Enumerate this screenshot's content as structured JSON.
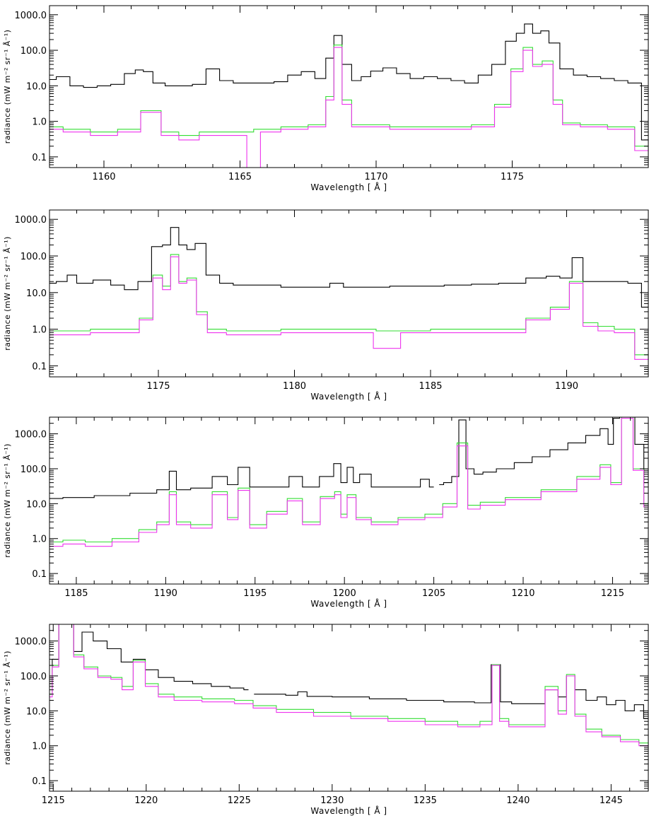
{
  "chart_data": [
    {
      "type": "line",
      "ylabel": "radiance (mW m⁻² sr⁻¹ Å⁻¹)",
      "xlabel": "Wavelength [ Å ]",
      "xlim": [
        1158,
        1180
      ],
      "ylim": [
        0.05,
        1800
      ],
      "yscale": "log",
      "xticks": [
        1160,
        1165,
        1170,
        1175
      ],
      "yticks": [
        0.1,
        1.0,
        10.0,
        100.0,
        1000.0
      ],
      "ytick_labels": [
        "0.1",
        "1.0",
        "10.0",
        "100.0",
        "1000.0"
      ],
      "series": [
        {
          "color": "#000000",
          "x": [
            1158,
            1158.5,
            1159,
            1159.5,
            1160,
            1160.5,
            1161,
            1161.3,
            1161.6,
            1162,
            1162.5,
            1163,
            1163.5,
            1164,
            1164.5,
            1165,
            1165.5,
            1166,
            1166.5,
            1167,
            1167.5,
            1168,
            1168.3,
            1168.6,
            1168.9,
            1169.3,
            1169.6,
            1170,
            1170.5,
            1171,
            1171.5,
            1172,
            1172.5,
            1173,
            1173.5,
            1174,
            1174.5,
            1175,
            1175.3,
            1175.6,
            1175.9,
            1176.2,
            1176.5,
            1177,
            1177.5,
            1178,
            1178.5,
            1179,
            1179.5,
            1180
          ],
          "y": [
            15,
            18,
            10,
            9,
            10,
            11,
            22,
            28,
            25,
            12,
            10,
            10,
            11,
            30,
            14,
            12,
            12,
            12,
            13,
            20,
            25,
            16,
            60,
            260,
            40,
            14,
            18,
            26,
            32,
            22,
            16,
            18,
            16,
            14,
            12,
            20,
            40,
            180,
            300,
            550,
            300,
            350,
            160,
            30,
            20,
            18,
            16,
            14,
            12,
            0.3
          ]
        },
        {
          "color": "#33dd33",
          "x": [
            1158,
            1159,
            1160,
            1161,
            1161.7,
            1162.5,
            1163,
            1164,
            1165,
            1166,
            1167,
            1168,
            1168.3,
            1168.6,
            1168.9,
            1169.3,
            1170,
            1171,
            1172,
            1173,
            1174,
            1174.7,
            1175.2,
            1175.6,
            1175.9,
            1176.3,
            1176.7,
            1177,
            1178,
            1179,
            1180
          ],
          "y": [
            0.7,
            0.6,
            0.5,
            0.6,
            2.0,
            0.5,
            0.4,
            0.5,
            0.5,
            0.6,
            0.7,
            0.8,
            5,
            140,
            4,
            0.8,
            0.8,
            0.7,
            0.7,
            0.7,
            0.8,
            3,
            30,
            120,
            40,
            50,
            4,
            0.9,
            0.8,
            0.7,
            0.2
          ]
        },
        {
          "color": "#ee33ee",
          "x": [
            1158,
            1159,
            1160,
            1161,
            1161.7,
            1162.5,
            1163,
            1164,
            1165,
            1165.5,
            1166,
            1167,
            1168,
            1168.3,
            1168.6,
            1168.9,
            1169.3,
            1170,
            1171,
            1172,
            1173,
            1174,
            1174.7,
            1175.2,
            1175.6,
            1175.9,
            1176.3,
            1176.7,
            1177,
            1178,
            1179,
            1180
          ],
          "y": [
            0.6,
            0.5,
            0.4,
            0.5,
            1.8,
            0.4,
            0.3,
            0.4,
            0.4,
            0.05,
            0.5,
            0.6,
            0.7,
            4,
            120,
            3,
            0.7,
            0.7,
            0.6,
            0.6,
            0.6,
            0.7,
            2.5,
            25,
            100,
            35,
            40,
            3,
            0.8,
            0.7,
            0.6,
            0.15
          ]
        }
      ]
    },
    {
      "type": "line",
      "ylabel": "radiance (mW m⁻² sr⁻¹ Å⁻¹)",
      "xlabel": "Wavelength [ Å ]",
      "xlim": [
        1171,
        1193
      ],
      "ylim": [
        0.05,
        1800
      ],
      "yscale": "log",
      "xticks": [
        1175,
        1180,
        1185,
        1190
      ],
      "yticks": [
        0.1,
        1.0,
        10.0,
        100.0,
        1000.0
      ],
      "ytick_labels": [
        "0.1",
        "1.0",
        "10.0",
        "100.0",
        "1000.0"
      ],
      "series": [
        {
          "color": "#000000",
          "x": [
            1171,
            1171.5,
            1171.8,
            1172.2,
            1173,
            1173.5,
            1174,
            1174.5,
            1175,
            1175.3,
            1175.6,
            1175.9,
            1176.2,
            1176.5,
            1177,
            1177.5,
            1178,
            1179,
            1180,
            1181,
            1181.6,
            1182,
            1183,
            1184,
            1185,
            1186,
            1187,
            1188,
            1189,
            1189.5,
            1190,
            1190.4,
            1190.8,
            1191.5,
            1192,
            1192.5,
            1193
          ],
          "y": [
            18,
            20,
            30,
            18,
            22,
            16,
            12,
            20,
            180,
            200,
            600,
            200,
            150,
            220,
            30,
            18,
            16,
            16,
            14,
            14,
            18,
            14,
            14,
            15,
            15,
            16,
            17,
            18,
            25,
            28,
            25,
            90,
            20,
            20,
            20,
            18,
            4
          ]
        },
        {
          "color": "#33dd33",
          "x": [
            1171,
            1172,
            1173,
            1174,
            1174.6,
            1175,
            1175.3,
            1175.6,
            1175.9,
            1176.2,
            1176.6,
            1177,
            1178,
            1179,
            1180,
            1182,
            1184,
            1186,
            1188,
            1189,
            1189.8,
            1190.4,
            1190.8,
            1191.5,
            1192,
            1193
          ],
          "y": [
            0.9,
            0.9,
            1.0,
            1.0,
            2,
            30,
            15,
            110,
            20,
            25,
            3,
            1.0,
            0.9,
            0.9,
            1.0,
            1.0,
            0.9,
            1.0,
            1.0,
            2,
            4,
            20,
            1.5,
            1.2,
            1.0,
            0.2
          ]
        },
        {
          "color": "#ee33ee",
          "x": [
            1171,
            1172,
            1173,
            1174,
            1174.6,
            1175,
            1175.3,
            1175.6,
            1175.9,
            1176.2,
            1176.6,
            1177,
            1178,
            1179,
            1180,
            1182,
            1183.8,
            1184,
            1186,
            1188,
            1189,
            1189.8,
            1190.4,
            1190.8,
            1191.5,
            1192,
            1193
          ],
          "y": [
            0.7,
            0.7,
            0.8,
            0.8,
            1.8,
            25,
            12,
            95,
            18,
            22,
            2.5,
            0.8,
            0.7,
            0.7,
            0.8,
            0.8,
            0.3,
            0.8,
            0.8,
            0.8,
            1.8,
            3.5,
            18,
            1.2,
            0.9,
            0.8,
            0.15
          ]
        }
      ]
    },
    {
      "type": "line",
      "ylabel": "radiance (mW m⁻² sr⁻¹ Å⁻¹)",
      "xlabel": "Wavelength [ Å ]",
      "xlim": [
        1183.5,
        1217
      ],
      "ylim": [
        0.05,
        3000
      ],
      "yscale": "log",
      "xticks": [
        1185,
        1190,
        1195,
        1200,
        1205,
        1210,
        1215
      ],
      "yticks": [
        0.1,
        1.0,
        10.0,
        100.0,
        1000.0
      ],
      "ytick_labels": [
        "0.1",
        "1.0",
        "10.0",
        "100.0",
        "1000.0"
      ],
      "series": [
        {
          "color": "#000000",
          "x": [
            1183.5,
            1185,
            1187,
            1189,
            1190,
            1190.4,
            1190.8,
            1192,
            1193.2,
            1193.7,
            1194.4,
            1195,
            1196.5,
            1197.3,
            1198,
            1199.2,
            1199.6,
            1200,
            1200.3,
            1200.7,
            1201,
            1202,
            1203,
            1204,
            1204.5,
            1205
          ],
          "y": [
            14,
            15,
            17,
            20,
            25,
            85,
            25,
            28,
            60,
            35,
            110,
            30,
            30,
            60,
            30,
            60,
            140,
            40,
            110,
            40,
            70,
            30,
            30,
            30,
            50,
            30
          ]
        },
        {
          "color": "#000000",
          "x": [
            1205.3,
            1205.8,
            1206.2,
            1206.6,
            1207,
            1207.5,
            1208,
            1209,
            1210,
            1211,
            1212,
            1213,
            1214,
            1214.6,
            1214.9,
            1215.2,
            1215.6,
            1216,
            1216.5,
            1217
          ],
          "y": [
            35,
            40,
            60,
            2500,
            100,
            70,
            80,
            100,
            150,
            220,
            350,
            550,
            900,
            1400,
            500,
            2800,
            3000,
            3000,
            500,
            40
          ]
        },
        {
          "color": "#33dd33",
          "x": [
            1183.5,
            1185,
            1186,
            1188,
            1189,
            1190,
            1190.4,
            1190.8,
            1192,
            1193.2,
            1193.7,
            1194.4,
            1195,
            1196.3,
            1197.3,
            1198,
            1199.3,
            1199.6,
            1200,
            1200.3,
            1201,
            1202,
            1204,
            1205,
            1206,
            1206.6,
            1207.2,
            1208,
            1210,
            1212,
            1214,
            1214.6,
            1215.2,
            1215.8,
            1216.5,
            1217
          ],
          "y": [
            0.8,
            0.9,
            0.8,
            1.0,
            1.8,
            3,
            22,
            3,
            2.5,
            22,
            4,
            28,
            2.5,
            6,
            14,
            3,
            16,
            22,
            5,
            18,
            4,
            3,
            4,
            5,
            10,
            550,
            9,
            11,
            15,
            25,
            60,
            130,
            40,
            3000,
            100,
            10
          ]
        },
        {
          "color": "#ee33ee",
          "x": [
            1183.5,
            1185,
            1186,
            1188,
            1189,
            1190,
            1190.4,
            1190.8,
            1192,
            1193.2,
            1193.7,
            1194.4,
            1195,
            1196.3,
            1197.3,
            1198,
            1199.3,
            1199.6,
            1200,
            1200.3,
            1201,
            1202,
            1204,
            1205,
            1206,
            1206.6,
            1207.2,
            1208,
            1210,
            1212,
            1214,
            1214.6,
            1215.2,
            1215.8,
            1216.5,
            1217
          ],
          "y": [
            0.6,
            0.7,
            0.6,
            0.8,
            1.5,
            2.5,
            18,
            2.5,
            2.0,
            18,
            3.5,
            24,
            2,
            5,
            12,
            2.5,
            14,
            18,
            4,
            15,
            3.5,
            2.5,
            3.5,
            4,
            8,
            450,
            7,
            9,
            13,
            22,
            50,
            110,
            35,
            2800,
            90,
            8
          ]
        }
      ]
    },
    {
      "type": "line",
      "ylabel": "radiance (mW m⁻² sr⁻¹ Å⁻¹)",
      "xlabel": "Wavelength [ Å ]",
      "xlim": [
        1214.8,
        1247
      ],
      "ylim": [
        0.05,
        3000
      ],
      "yscale": "log",
      "xticks": [
        1215,
        1220,
        1225,
        1230,
        1235,
        1240,
        1245
      ],
      "yticks": [
        0.1,
        1.0,
        10.0,
        100.0,
        1000.0
      ],
      "ytick_labels": [
        "0.1",
        "1.0",
        "10.0",
        "100.0",
        "1000.0"
      ],
      "series": [
        {
          "color": "#000000",
          "x": [
            1214.8,
            1215.1,
            1215.5,
            1215.9,
            1216.3,
            1216.8,
            1217.5,
            1218.3,
            1219,
            1219.6,
            1220.3,
            1221,
            1222,
            1223,
            1224,
            1225,
            1225.5
          ],
          "y": [
            60,
            300,
            3000,
            3000,
            500,
            1800,
            1000,
            600,
            250,
            300,
            150,
            90,
            70,
            60,
            50,
            45,
            40
          ]
        },
        {
          "color": "#000000",
          "x": [
            1225.8,
            1227,
            1228,
            1228.3,
            1229,
            1231,
            1233,
            1235,
            1237,
            1238.3,
            1238.8,
            1239.3,
            1240,
            1241,
            1241.9,
            1242.4,
            1242.8,
            1243.3,
            1244,
            1244.5,
            1245,
            1245.5,
            1246,
            1246.5,
            1247
          ],
          "y": [
            30,
            30,
            28,
            35,
            26,
            25,
            22,
            20,
            18,
            17,
            210,
            18,
            16,
            16,
            40,
            25,
            100,
            40,
            20,
            25,
            15,
            20,
            10,
            15,
            6
          ]
        },
        {
          "color": "#33dd33",
          "x": [
            1214.8,
            1215.1,
            1215.5,
            1215.9,
            1216.3,
            1217,
            1217.8,
            1218.4,
            1219,
            1219.6,
            1220.3,
            1221,
            1222,
            1224,
            1225.5,
            1226,
            1228,
            1230,
            1232,
            1234,
            1236,
            1237.5,
            1238.4,
            1238.8,
            1239.2,
            1239.8,
            1241,
            1241.9,
            1242.4,
            1242.8,
            1243.3,
            1244,
            1245,
            1246,
            1247
          ],
          "y": [
            30,
            200,
            3000,
            3000,
            400,
            180,
            100,
            90,
            50,
            280,
            60,
            30,
            25,
            22,
            20,
            14,
            11,
            9,
            7,
            6,
            5,
            4,
            5,
            210,
            6,
            4,
            4,
            50,
            10,
            110,
            8,
            3,
            2,
            1.5,
            1.2
          ]
        },
        {
          "color": "#ee33ee",
          "x": [
            1214.8,
            1215.1,
            1215.5,
            1215.9,
            1216.3,
            1217,
            1217.8,
            1218.4,
            1219,
            1219.6,
            1220.3,
            1221,
            1222,
            1224,
            1225.5,
            1226,
            1228,
            1230,
            1232,
            1234,
            1236,
            1237.5,
            1238.4,
            1238.8,
            1239.2,
            1239.8,
            1241,
            1241.9,
            1242.4,
            1242.8,
            1243.3,
            1244,
            1245,
            1246,
            1247
          ],
          "y": [
            25,
            180,
            3000,
            3000,
            350,
            160,
            90,
            80,
            40,
            250,
            50,
            25,
            20,
            18,
            16,
            12,
            9,
            7,
            6,
            5,
            4,
            3.5,
            4,
            200,
            5,
            3.5,
            3.5,
            40,
            8,
            100,
            7,
            2.5,
            1.8,
            1.3,
            1.0
          ]
        }
      ]
    }
  ]
}
